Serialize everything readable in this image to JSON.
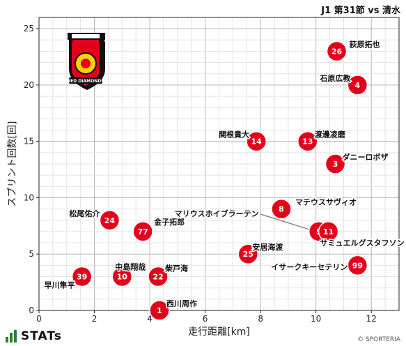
{
  "header": {
    "title": "J1 第31節 vs 清水"
  },
  "footer": {
    "brand": "STATs",
    "copyright": "© SPORTERIA"
  },
  "chart_data": {
    "type": "scatter",
    "title": "J1 第31節 vs 清水",
    "xlabel": "走行距離[km]",
    "ylabel": "スプリント回数[回]",
    "xlim": [
      0,
      13
    ],
    "ylim": [
      0,
      26
    ],
    "xticks": [
      0,
      2,
      4,
      6,
      8,
      10,
      12
    ],
    "yticks": [
      0,
      5,
      10,
      15,
      20,
      25
    ],
    "grid": true,
    "marker_color": "#e3001b",
    "points": [
      {
        "number": "26",
        "name": "荻原拓也",
        "x": 10.75,
        "y": 23
      },
      {
        "number": "4",
        "name": "石原広教",
        "x": 11.5,
        "y": 20
      },
      {
        "number": "14",
        "name": "関根貴大",
        "x": 7.85,
        "y": 15
      },
      {
        "number": "13",
        "name": "渡邊凌磨",
        "x": 9.7,
        "y": 15
      },
      {
        "number": "3",
        "name": "ダニーロボザ",
        "x": 10.7,
        "y": 13
      },
      {
        "number": "8",
        "name": "マテウスサヴィオ",
        "x": 8.75,
        "y": 9
      },
      {
        "number": "5",
        "name": "マリウスホイブラーテン",
        "x": 10.1,
        "y": 7
      },
      {
        "number": "11",
        "name": "サミュエルグスタフソン",
        "x": 10.45,
        "y": 7
      },
      {
        "number": "24",
        "name": "松尾佑介",
        "x": 2.55,
        "y": 8
      },
      {
        "number": "77",
        "name": "金子拓郎",
        "x": 3.75,
        "y": 7
      },
      {
        "number": "25",
        "name": "安居海渡",
        "x": 7.55,
        "y": 5
      },
      {
        "number": "99",
        "name": "イサークキーセテリン",
        "x": 11.5,
        "y": 4
      },
      {
        "number": "39",
        "name": "早川隼平",
        "x": 1.55,
        "y": 3
      },
      {
        "number": "10",
        "name": "中島翔哉",
        "x": 3.0,
        "y": 3
      },
      {
        "number": "22",
        "name": "柴戸海",
        "x": 4.3,
        "y": 3
      },
      {
        "number": "1",
        "name": "西川周作",
        "x": 4.35,
        "y": 0
      }
    ]
  }
}
